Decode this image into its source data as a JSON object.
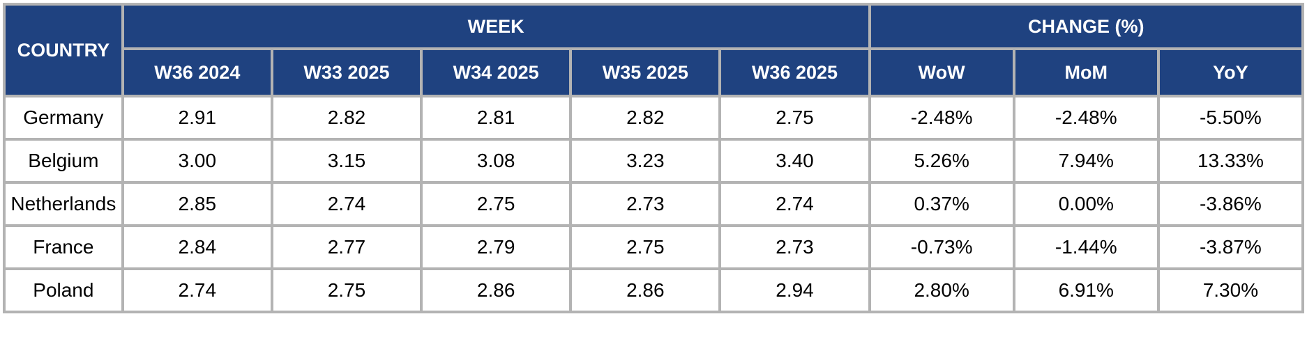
{
  "chart_data": {
    "type": "table",
    "corner_header": "COUNTRY",
    "column_groups": [
      {
        "label": "WEEK",
        "span": 5
      },
      {
        "label": "CHANGE (%)",
        "span": 3
      }
    ],
    "columns": [
      "W36 2024",
      "W33 2025",
      "W34 2025",
      "W35 2025",
      "W36 2025",
      "WoW",
      "MoM",
      "YoY"
    ],
    "rows": [
      [
        "Germany",
        "2.91",
        "2.82",
        "2.81",
        "2.82",
        "2.75",
        "-2.48%",
        "-2.48%",
        "-5.50%"
      ],
      [
        "Belgium",
        "3.00",
        "3.15",
        "3.08",
        "3.23",
        "3.40",
        "5.26%",
        "7.94%",
        "13.33%"
      ],
      [
        "Netherlands",
        "2.85",
        "2.74",
        "2.75",
        "2.73",
        "2.74",
        "0.37%",
        "0.00%",
        "-3.86%"
      ],
      [
        "France",
        "2.84",
        "2.77",
        "2.79",
        "2.75",
        "2.73",
        "-0.73%",
        "-1.44%",
        "-3.87%"
      ],
      [
        "Poland",
        "2.74",
        "2.75",
        "2.86",
        "2.86",
        "2.94",
        "2.80%",
        "6.91%",
        "7.30%"
      ]
    ],
    "colors": {
      "header_bg": "#1f4280",
      "header_text": "#ffffff",
      "border": "#b3b3b3",
      "cell_bg": "#ffffff",
      "cell_text": "#000000"
    }
  }
}
